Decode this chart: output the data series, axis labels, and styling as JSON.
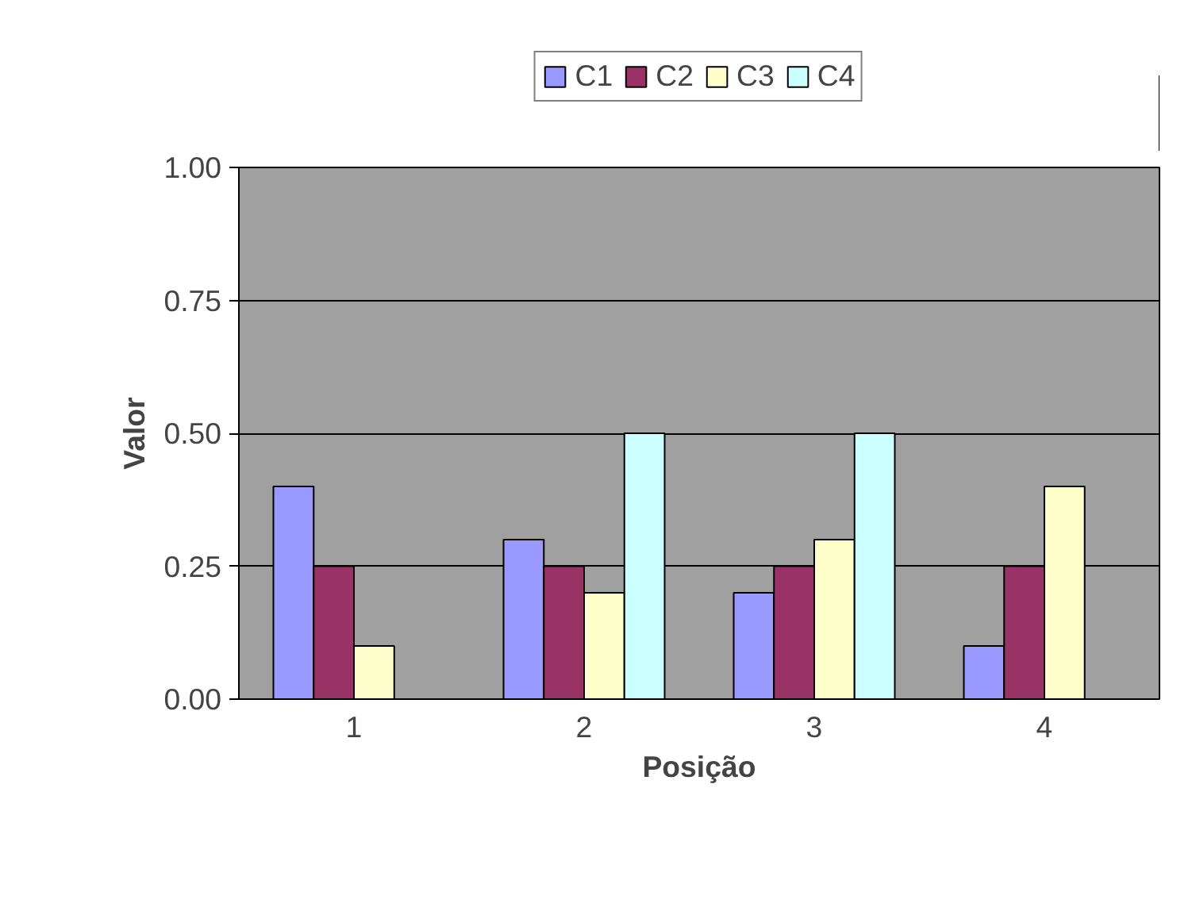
{
  "chart_data": {
    "type": "bar",
    "xlabel": "Posição",
    "ylabel": "Valor",
    "categories": [
      "1",
      "2",
      "3",
      "4"
    ],
    "series": [
      {
        "name": "C1",
        "color": "#9999ff",
        "values": [
          0.4,
          0.3,
          0.2,
          0.1
        ]
      },
      {
        "name": "C2",
        "color": "#993366",
        "values": [
          0.25,
          0.25,
          0.25,
          0.25
        ]
      },
      {
        "name": "C3",
        "color": "#ffffcc",
        "values": [
          0.1,
          0.2,
          0.3,
          0.4
        ]
      },
      {
        "name": "C4",
        "color": "#ccffff",
        "values": [
          null,
          0.5,
          0.5,
          null
        ]
      }
    ],
    "ylim": [
      0,
      1
    ],
    "yticks": [
      {
        "value": 0,
        "label": "0.00"
      },
      {
        "value": 0.25,
        "label": "0.25"
      },
      {
        "value": 0.5,
        "label": "0.50"
      },
      {
        "value": 0.75,
        "label": "0.75"
      },
      {
        "value": 1,
        "label": "1.00"
      }
    ],
    "grid": "y",
    "legend": "top"
  }
}
